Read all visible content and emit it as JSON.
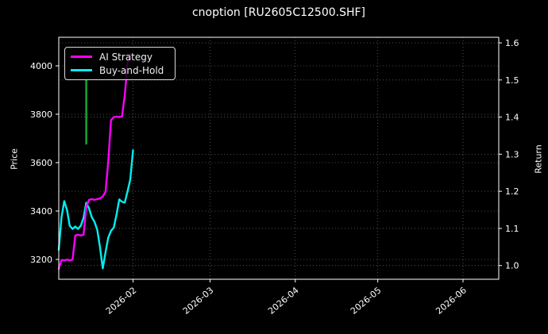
{
  "title": "cnoption [RU2605C12500.SHF]",
  "chart_data": {
    "type": "line",
    "title": "cnoption [RU2605C12500.SHF]",
    "grid": true,
    "background": "#000000",
    "left_axis": {
      "label": "Price",
      "ticks": [
        3200,
        3400,
        3600,
        3800,
        4000
      ],
      "range": [
        3118,
        4118
      ]
    },
    "right_axis": {
      "label": "Return",
      "ticks": [
        1.0,
        1.1,
        1.2,
        1.3,
        1.4,
        1.5,
        1.6
      ],
      "range": [
        0.963,
        1.615
      ]
    },
    "x_axis": {
      "range": [
        "2026-01-05",
        "2026-06-14"
      ],
      "ticks": [
        {
          "label": "2026-02",
          "date": "2026-02-01"
        },
        {
          "label": "2026-03",
          "date": "2026-03-01"
        },
        {
          "label": "2026-04",
          "date": "2026-04-01"
        },
        {
          "label": "2026-05",
          "date": "2026-05-01"
        },
        {
          "label": "2026-06",
          "date": "2026-06-01"
        }
      ]
    },
    "legend": {
      "position": "upper-left",
      "entries": [
        "AI Strategy",
        "Buy-and-Hold"
      ]
    },
    "series": [
      {
        "name": "AI Strategy",
        "axis": "right",
        "color": "#ff00ff",
        "dates": [
          "2026-01-05",
          "2026-01-06",
          "2026-01-07",
          "2026-01-08",
          "2026-01-09",
          "2026-01-10",
          "2026-01-11",
          "2026-01-12",
          "2026-01-13",
          "2026-01-14",
          "2026-01-15",
          "2026-01-16",
          "2026-01-17",
          "2026-01-18",
          "2026-01-19",
          "2026-01-20",
          "2026-01-21",
          "2026-01-22",
          "2026-01-23",
          "2026-01-24",
          "2026-01-25",
          "2026-01-26",
          "2026-01-27",
          "2026-01-28",
          "2026-01-29",
          "2026-01-30",
          "2026-01-31"
        ],
        "values": [
          0.991,
          1.015,
          1.014,
          1.016,
          1.014,
          1.016,
          1.081,
          1.083,
          1.081,
          1.083,
          1.158,
          1.177,
          1.179,
          1.177,
          1.179,
          1.181,
          1.186,
          1.199,
          1.28,
          1.392,
          1.4,
          1.401,
          1.4,
          1.402,
          1.459,
          1.544,
          1.57
        ]
      },
      {
        "name": "Buy-and-Hold",
        "axis": "left",
        "color": "#00efef",
        "dates": [
          "2026-01-05",
          "2026-01-06",
          "2026-01-07",
          "2026-01-08",
          "2026-01-09",
          "2026-01-10",
          "2026-01-11",
          "2026-01-12",
          "2026-01-13",
          "2026-01-14",
          "2026-01-15",
          "2026-01-16",
          "2026-01-17",
          "2026-01-18",
          "2026-01-19",
          "2026-01-20",
          "2026-01-21",
          "2026-01-22",
          "2026-01-23",
          "2026-01-24",
          "2026-01-25",
          "2026-01-26",
          "2026-01-27",
          "2026-01-28",
          "2026-01-29",
          "2026-01-30",
          "2026-01-31",
          "2026-02-01"
        ],
        "values": [
          3240,
          3375,
          3441,
          3404,
          3339,
          3326,
          3336,
          3326,
          3339,
          3372,
          3434,
          3411,
          3375,
          3355,
          3322,
          3250,
          3163,
          3230,
          3290,
          3318,
          3332,
          3385,
          3448,
          3438,
          3435,
          3481,
          3530,
          3651
        ]
      }
    ],
    "markers": [
      {
        "type": "vertical-segment",
        "name": "signal-marker",
        "color": "#12a02a",
        "date": "2026-01-15",
        "price_from": 3675,
        "price_to": 3945
      }
    ]
  }
}
